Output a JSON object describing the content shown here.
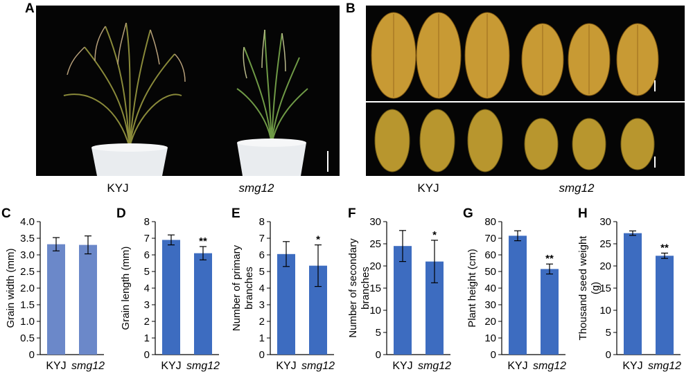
{
  "panels": {
    "A": {
      "letter": "A",
      "captions": [
        "KYJ",
        "smg12"
      ]
    },
    "B": {
      "letter": "B",
      "captions": [
        "KYJ",
        "smg12"
      ]
    }
  },
  "colors": {
    "bar": "#3d6cc0",
    "bar_c": "#6b88c9",
    "photo_bg": "#050505",
    "grain": "#c89a34"
  },
  "chart_data": [
    {
      "letter": "C",
      "type": "bar",
      "title": "",
      "xlabel": "",
      "ylabel": "Grain width (mm)",
      "categories": [
        "KYJ",
        "smg12"
      ],
      "values": [
        3.32,
        3.3
      ],
      "errors": [
        0.2,
        0.27
      ],
      "significance": [
        "",
        ""
      ],
      "ylim": [
        0,
        4.0
      ],
      "yticks": [
        "0",
        "0.5",
        "1.0",
        "1.5",
        "2.0",
        "2.5",
        "3.0",
        "3.5",
        "4.0"
      ],
      "grid": false
    },
    {
      "letter": "D",
      "type": "bar",
      "title": "",
      "xlabel": "",
      "ylabel": "Grain length (mm)",
      "categories": [
        "KYJ",
        "smg12"
      ],
      "values": [
        6.9,
        6.1
      ],
      "errors": [
        0.3,
        0.4
      ],
      "significance": [
        "",
        "**"
      ],
      "ylim": [
        0,
        8
      ],
      "yticks": [
        "0",
        "1",
        "2",
        "3",
        "4",
        "5",
        "6",
        "7",
        "8"
      ],
      "grid": false
    },
    {
      "letter": "E",
      "type": "bar",
      "title": "",
      "xlabel": "",
      "ylabel": "Number of primary branches",
      "categories": [
        "KYJ",
        "smg12"
      ],
      "values": [
        6.05,
        5.35
      ],
      "errors": [
        0.75,
        1.25
      ],
      "significance": [
        "",
        "*"
      ],
      "ylim": [
        0,
        8
      ],
      "yticks": [
        "0",
        "1",
        "2",
        "3",
        "4",
        "5",
        "6",
        "7",
        "8"
      ],
      "grid": false
    },
    {
      "letter": "F",
      "type": "bar",
      "title": "",
      "xlabel": "",
      "ylabel": "Number of secondary branches",
      "categories": [
        "KYJ",
        "smg12"
      ],
      "values": [
        24.5,
        21.0
      ],
      "errors": [
        3.5,
        4.8
      ],
      "significance": [
        "",
        "*"
      ],
      "ylim": [
        0,
        30
      ],
      "yticks": [
        "0",
        "5",
        "10",
        "15",
        "20",
        "25",
        "30"
      ],
      "grid": false
    },
    {
      "letter": "G",
      "type": "bar",
      "title": "",
      "xlabel": "",
      "ylabel": "Plant height (cm)",
      "categories": [
        "KYJ",
        "smg12"
      ],
      "values": [
        71.5,
        51.5
      ],
      "errors": [
        3.0,
        3.0
      ],
      "significance": [
        "",
        "**"
      ],
      "ylim": [
        0,
        80
      ],
      "yticks": [
        "0",
        "10",
        "20",
        "30",
        "40",
        "50",
        "60",
        "70",
        "80"
      ],
      "grid": false
    },
    {
      "letter": "H",
      "type": "bar",
      "title": "",
      "xlabel": "",
      "ylabel": "Thousand seed weight (g)",
      "categories": [
        "KYJ",
        "smg12"
      ],
      "values": [
        27.4,
        22.3
      ],
      "errors": [
        0.5,
        0.6
      ],
      "significance": [
        "",
        "**"
      ],
      "ylim": [
        0,
        30
      ],
      "yticks": [
        "0",
        "5",
        "10",
        "15",
        "20",
        "25",
        "30"
      ],
      "grid": false
    }
  ]
}
